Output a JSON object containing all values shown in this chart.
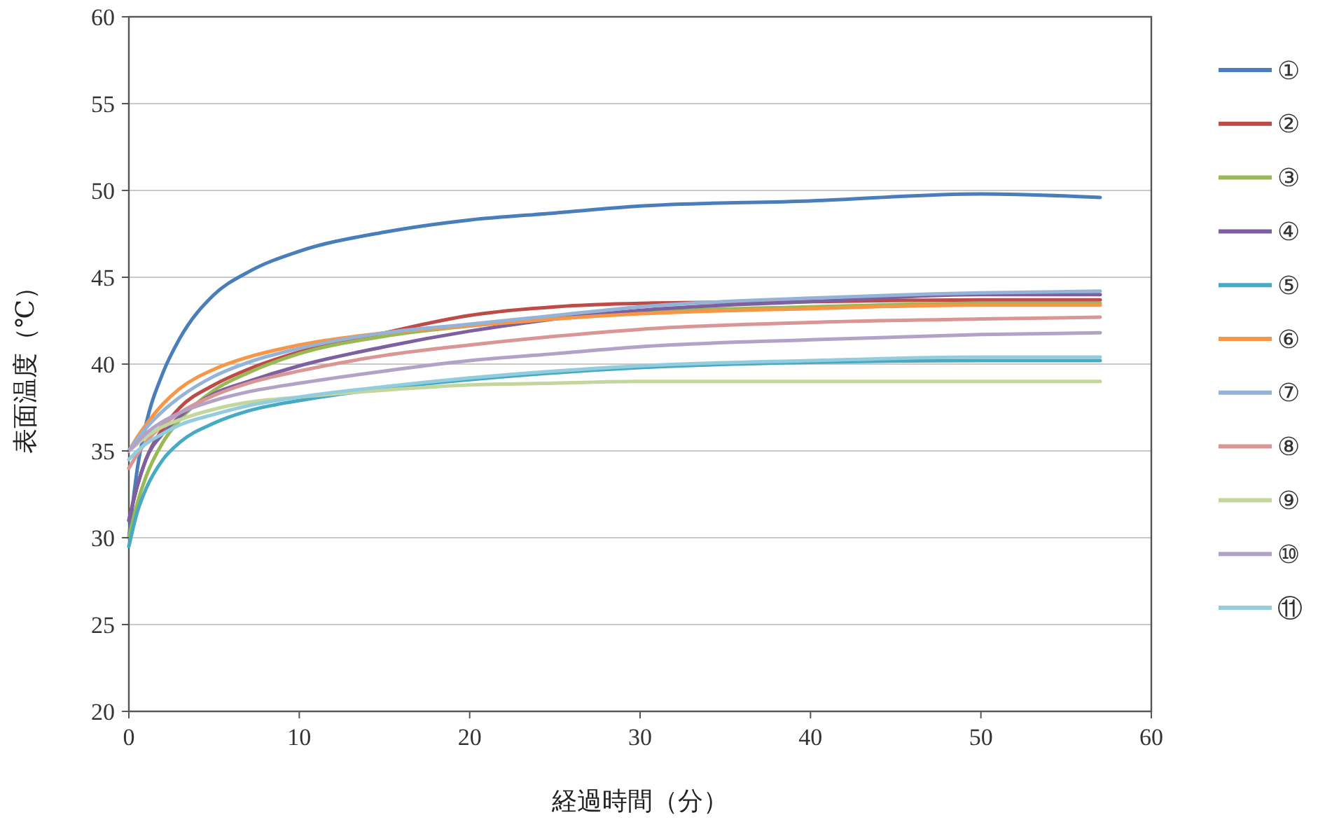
{
  "chart_data": {
    "type": "line",
    "xlabel": "経過時間（分）",
    "ylabel": "表面温度（℃）",
    "x": [
      0,
      0.5,
      1,
      2,
      3,
      5,
      7,
      10,
      15,
      20,
      25,
      30,
      40,
      50,
      57
    ],
    "xlim": [
      0,
      60
    ],
    "xticks": [
      0,
      10,
      20,
      30,
      40,
      50,
      60
    ],
    "ylim": [
      20,
      60
    ],
    "yticks": [
      20,
      25,
      30,
      35,
      40,
      45,
      50,
      55,
      60
    ],
    "grid": "y",
    "legend": "right",
    "marker": "none",
    "line_style": "solid",
    "series": [
      {
        "name": "①",
        "color": "#4a7ebb",
        "values": [
          30,
          34,
          36.5,
          39.5,
          41.5,
          44,
          45.3,
          46.5,
          47.6,
          48.3,
          48.7,
          49.1,
          49.4,
          49.8,
          49.6
        ]
      },
      {
        "name": "②",
        "color": "#be4b48",
        "values": [
          31,
          33,
          34.5,
          36.3,
          37.5,
          38.8,
          39.7,
          40.7,
          41.8,
          42.8,
          43.3,
          43.5,
          43.6,
          43.7,
          43.7
        ]
      },
      {
        "name": "③",
        "color": "#98b954",
        "values": [
          30,
          32,
          33.5,
          35.5,
          36.8,
          38.5,
          39.5,
          40.6,
          41.6,
          42.2,
          42.7,
          43,
          43.3,
          43.5,
          43.5
        ]
      },
      {
        "name": "④",
        "color": "#7d60a0",
        "values": [
          31,
          33,
          34.5,
          36,
          37,
          38.3,
          39,
          39.9,
          41,
          41.9,
          42.6,
          43.1,
          43.6,
          44,
          44
        ]
      },
      {
        "name": "⑤",
        "color": "#46aac5",
        "values": [
          29.5,
          31.5,
          32.8,
          34.5,
          35.5,
          36.6,
          37.3,
          37.9,
          38.6,
          39.1,
          39.5,
          39.8,
          40.1,
          40.2,
          40.2
        ]
      },
      {
        "name": "⑥",
        "color": "#f79646",
        "values": [
          35,
          35.8,
          36.5,
          37.7,
          38.6,
          39.7,
          40.4,
          41.1,
          41.8,
          42.2,
          42.6,
          42.9,
          43.2,
          43.4,
          43.4
        ]
      },
      {
        "name": "⑦",
        "color": "#95b3d7",
        "values": [
          35,
          35.7,
          36.3,
          37.3,
          38.1,
          39.3,
          40.1,
          40.9,
          41.8,
          42.3,
          42.8,
          43.3,
          43.8,
          44.1,
          44.2
        ]
      },
      {
        "name": "⑧",
        "color": "#d99694",
        "values": [
          34,
          34.8,
          35.5,
          36.5,
          37.2,
          38.2,
          38.9,
          39.6,
          40.5,
          41.1,
          41.6,
          42,
          42.4,
          42.6,
          42.7
        ]
      },
      {
        "name": "⑨",
        "color": "#c3d69b",
        "values": [
          35,
          35.4,
          35.8,
          36.4,
          36.8,
          37.4,
          37.8,
          38.1,
          38.5,
          38.8,
          38.9,
          39,
          39,
          39,
          39
        ]
      },
      {
        "name": "⑩",
        "color": "#b3a2c7",
        "values": [
          35,
          35.5,
          36,
          36.7,
          37.2,
          37.9,
          38.4,
          38.9,
          39.6,
          40.2,
          40.6,
          41,
          41.4,
          41.7,
          41.8
        ]
      },
      {
        "name": "⑪",
        "color": "#93cddd",
        "values": [
          34.5,
          35,
          35.4,
          36,
          36.5,
          37.1,
          37.6,
          38.1,
          38.7,
          39.2,
          39.6,
          39.9,
          40.2,
          40.4,
          40.4
        ]
      }
    ]
  }
}
